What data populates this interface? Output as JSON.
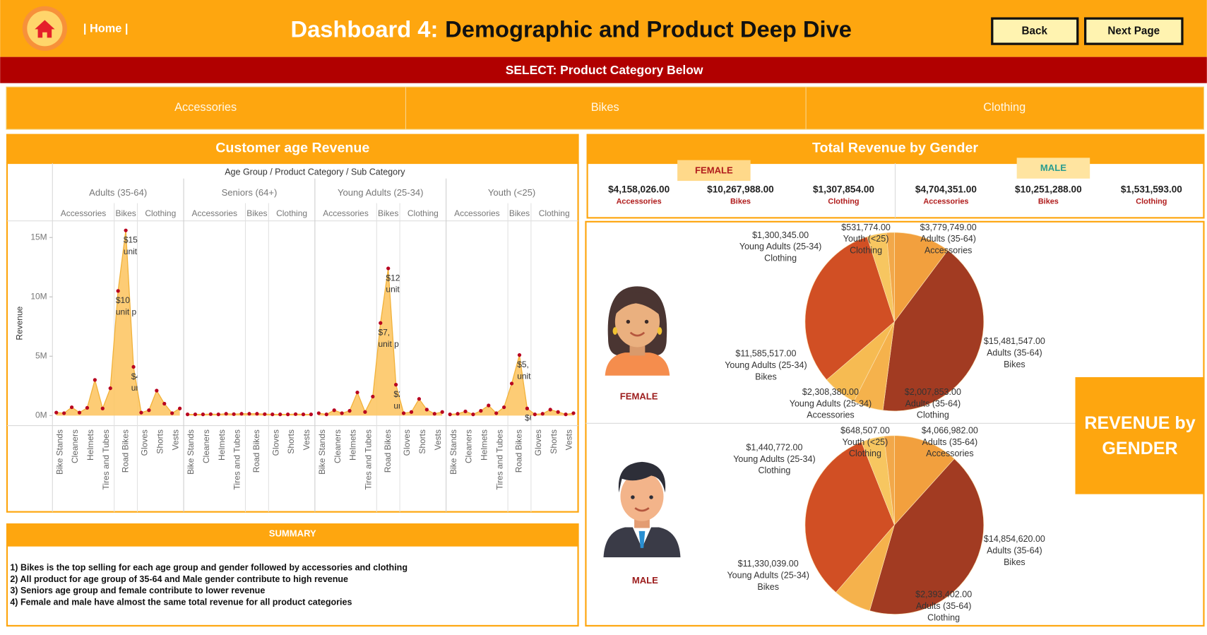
{
  "header": {
    "home": "| Home |",
    "title_prefix": "Dashboard 4:",
    "title": "Demographic and Product Deep Dive",
    "buttons": [
      "Back",
      "Next Page"
    ],
    "select_bar": "SELECT: Product Category Below",
    "filters": [
      "Accessories",
      "Bikes",
      "Clothing"
    ]
  },
  "chart_data": [
    {
      "type": "area",
      "title": "Customer age Revenue",
      "header": "Age Group / Product Category / Sub Category",
      "y_label": "Revenue",
      "ylim": [
        -850000,
        16400000
      ],
      "yticks": [
        {
          "value": 0,
          "label": "0M"
        },
        {
          "value": 5000000,
          "label": "5M"
        },
        {
          "value": 10000000,
          "label": "10M"
        },
        {
          "value": 15000000,
          "label": "15M"
        }
      ],
      "grid": false,
      "color": "#fdc766",
      "line_color": "#f2b23a",
      "point_color": "#b8001f",
      "groups": [
        {
          "name": "Adults (35-64)",
          "categories": [
            {
              "name": "Accessories",
              "subcategories": [
                {
                  "name": "Bike Stands",
                  "values": [
                    250000,
                    200000
                  ]
                },
                {
                  "name": "Cleaners",
                  "values": [
                    700000,
                    250000
                  ]
                },
                {
                  "name": "Helmets",
                  "values": [
                    650000,
                    3000000
                  ]
                },
                {
                  "name": "Tires and Tubes",
                  "values": [
                    600000,
                    2300000
                  ]
                }
              ]
            },
            {
              "name": "Bikes",
              "subcategories": [
                {
                  "name": "Road Bikes",
                  "values": [
                    10500000,
                    15600000,
                    4100000
                  ],
                  "value_labels": [
                    [
                      "$10",
                      "unit p"
                    ],
                    [
                      "$15",
                      "unit p"
                    ],
                    [
                      "$4,",
                      "unit p"
                    ]
                  ]
                }
              ]
            },
            {
              "name": "Clothing",
              "subcategories": [
                {
                  "name": "Gloves",
                  "values": [
                    250000,
                    450000
                  ]
                },
                {
                  "name": "Shorts",
                  "values": [
                    2100000,
                    1000000
                  ]
                },
                {
                  "name": "Vests",
                  "values": [
                    200000,
                    600000
                  ]
                }
              ]
            }
          ]
        },
        {
          "name": "Seniors (64+)",
          "categories": [
            {
              "name": "Accessories",
              "subcategories": [
                {
                  "name": "Bike Stands",
                  "values": [
                    100000,
                    100000
                  ]
                },
                {
                  "name": "Cleaners",
                  "values": [
                    100000,
                    120000
                  ]
                },
                {
                  "name": "Helmets",
                  "values": [
                    100000,
                    150000
                  ]
                },
                {
                  "name": "Tires and Tubes",
                  "values": [
                    120000,
                    150000
                  ]
                }
              ]
            },
            {
              "name": "Bikes",
              "subcategories": [
                {
                  "name": "Road Bikes",
                  "values": [
                    150000,
                    150000,
                    120000
                  ]
                }
              ]
            },
            {
              "name": "Clothing",
              "subcategories": [
                {
                  "name": "Gloves",
                  "values": [
                    100000,
                    100000
                  ]
                },
                {
                  "name": "Shorts",
                  "values": [
                    100000,
                    120000
                  ]
                },
                {
                  "name": "Vests",
                  "values": [
                    100000,
                    100000
                  ]
                }
              ]
            }
          ]
        },
        {
          "name": "Young Adults (25-34)",
          "categories": [
            {
              "name": "Accessories",
              "subcategories": [
                {
                  "name": "Bike Stands",
                  "values": [
                    200000,
                    100000
                  ]
                },
                {
                  "name": "Cleaners",
                  "values": [
                    450000,
                    200000
                  ]
                },
                {
                  "name": "Helmets",
                  "values": [
                    400000,
                    1950000
                  ]
                },
                {
                  "name": "Tires and Tubes",
                  "values": [
                    300000,
                    1600000
                  ]
                }
              ]
            },
            {
              "name": "Bikes",
              "subcategories": [
                {
                  "name": "Road Bikes",
                  "values": [
                    7800000,
                    12400000,
                    2600000
                  ],
                  "value_labels": [
                    [
                      "$7,",
                      "unit p"
                    ],
                    [
                      "$12",
                      "unit p"
                    ],
                    [
                      "$2,",
                      "unit p"
                    ]
                  ]
                }
              ]
            },
            {
              "name": "Clothing",
              "subcategories": [
                {
                  "name": "Gloves",
                  "values": [
                    200000,
                    300000
                  ]
                },
                {
                  "name": "Shorts",
                  "values": [
                    1400000,
                    500000
                  ]
                },
                {
                  "name": "Vests",
                  "values": [
                    150000,
                    300000
                  ]
                }
              ]
            }
          ]
        },
        {
          "name": "Youth (<25)",
          "categories": [
            {
              "name": "Accessories",
              "subcategories": [
                {
                  "name": "Bike Stands",
                  "values": [
                    100000,
                    150000
                  ]
                },
                {
                  "name": "Cleaners",
                  "values": [
                    350000,
                    100000
                  ]
                },
                {
                  "name": "Helmets",
                  "values": [
                    400000,
                    850000
                  ]
                },
                {
                  "name": "Tires and Tubes",
                  "values": [
                    200000,
                    700000
                  ]
                }
              ]
            },
            {
              "name": "Bikes",
              "subcategories": [
                {
                  "name": "Road Bikes",
                  "values": [
                    2700000,
                    5100000,
                    600000
                  ],
                  "value_labels": [
                    null,
                    [
                      "$5,",
                      "unit p"
                    ],
                    [
                      "$6",
                      "unit p"
                    ]
                  ]
                }
              ]
            },
            {
              "name": "Clothing",
              "subcategories": [
                {
                  "name": "Gloves",
                  "values": [
                    100000,
                    150000
                  ]
                },
                {
                  "name": "Shorts",
                  "values": [
                    500000,
                    300000
                  ]
                },
                {
                  "name": "Vests",
                  "values": [
                    100000,
                    200000
                  ]
                }
              ]
            }
          ]
        }
      ]
    },
    {
      "type": "pie",
      "label": "FEMALE",
      "values": [
        3779749,
        15481547,
        2007853,
        2308380,
        11585517,
        1300345,
        531774
      ],
      "value_labels": [
        "$3,779,749.00",
        "$15,481,547.00",
        "$2,007,853.00",
        "$2,308,380.00",
        "$11,585,517.00",
        "$1,300,345.00",
        "$531,774.00"
      ],
      "age_groups": [
        "Adults (35-64)",
        "Adults (35-64)",
        "Adults (35-64)",
        "Young Adults (25-34)",
        "Young Adults (25-34)",
        "Young Adults (25-34)",
        "Youth (<25)"
      ],
      "categories": [
        "Accessories",
        "Bikes",
        "Clothing",
        "Accessories",
        "Bikes",
        "Clothing",
        "Clothing"
      ],
      "colors": [
        "#f2a03e",
        "#a23b22",
        "#f5b24c",
        "#f6bb52",
        "#d14f24",
        "#f7c660",
        "#f2a84a"
      ]
    },
    {
      "type": "pie",
      "label": "MALE",
      "values": [
        4066982,
        14854620,
        2393402,
        11330039,
        1440772,
        648507
      ],
      "value_labels": [
        "$4,066,982.00",
        "$14,854,620.00",
        "$2,393,402.00",
        "$11,330,039.00",
        "$1,440,772.00",
        "$648,507.00"
      ],
      "age_groups": [
        "Adults (35-64)",
        "Adults (35-64)",
        "Adults (35-64)",
        "Young Adults (25-34)",
        "Young Adults (25-34)",
        "Youth (<25)"
      ],
      "categories": [
        "Accessories",
        "Bikes",
        "Clothing",
        "Bikes",
        "Clothing",
        "Clothing"
      ],
      "colors": [
        "#f2a03e",
        "#a23b22",
        "#f5b24c",
        "#d14f24",
        "#f7c660",
        "#f2a84a"
      ]
    }
  ],
  "kpi": {
    "title": "Total Revenue by Gender",
    "genders": [
      {
        "name": "FEMALE",
        "items": [
          {
            "value": "$4,158,026.00",
            "category": "Accessories"
          },
          {
            "value": "$10,267,988.00",
            "category": "Bikes"
          },
          {
            "value": "$1,307,854.00",
            "category": "Clothing"
          }
        ]
      },
      {
        "name": "MALE",
        "items": [
          {
            "value": "$4,704,351.00",
            "category": "Accessories"
          },
          {
            "value": "$10,251,288.00",
            "category": "Bikes"
          },
          {
            "value": "$1,531,593.00",
            "category": "Clothing"
          }
        ]
      }
    ]
  },
  "side_label": [
    "REVENUE by",
    "GENDER"
  ],
  "summary": {
    "title": "SUMMARY",
    "lines": [
      "1) Bikes is the top selling for each age group and gender followed by accessories and clothing",
      "2) All product for age group of 35-64 and Male gender contribute to high revenue",
      "3) Seniors age group and female contribute to lower revenue",
      "4) Female and male have almost the same total revenue for all product categories"
    ]
  }
}
